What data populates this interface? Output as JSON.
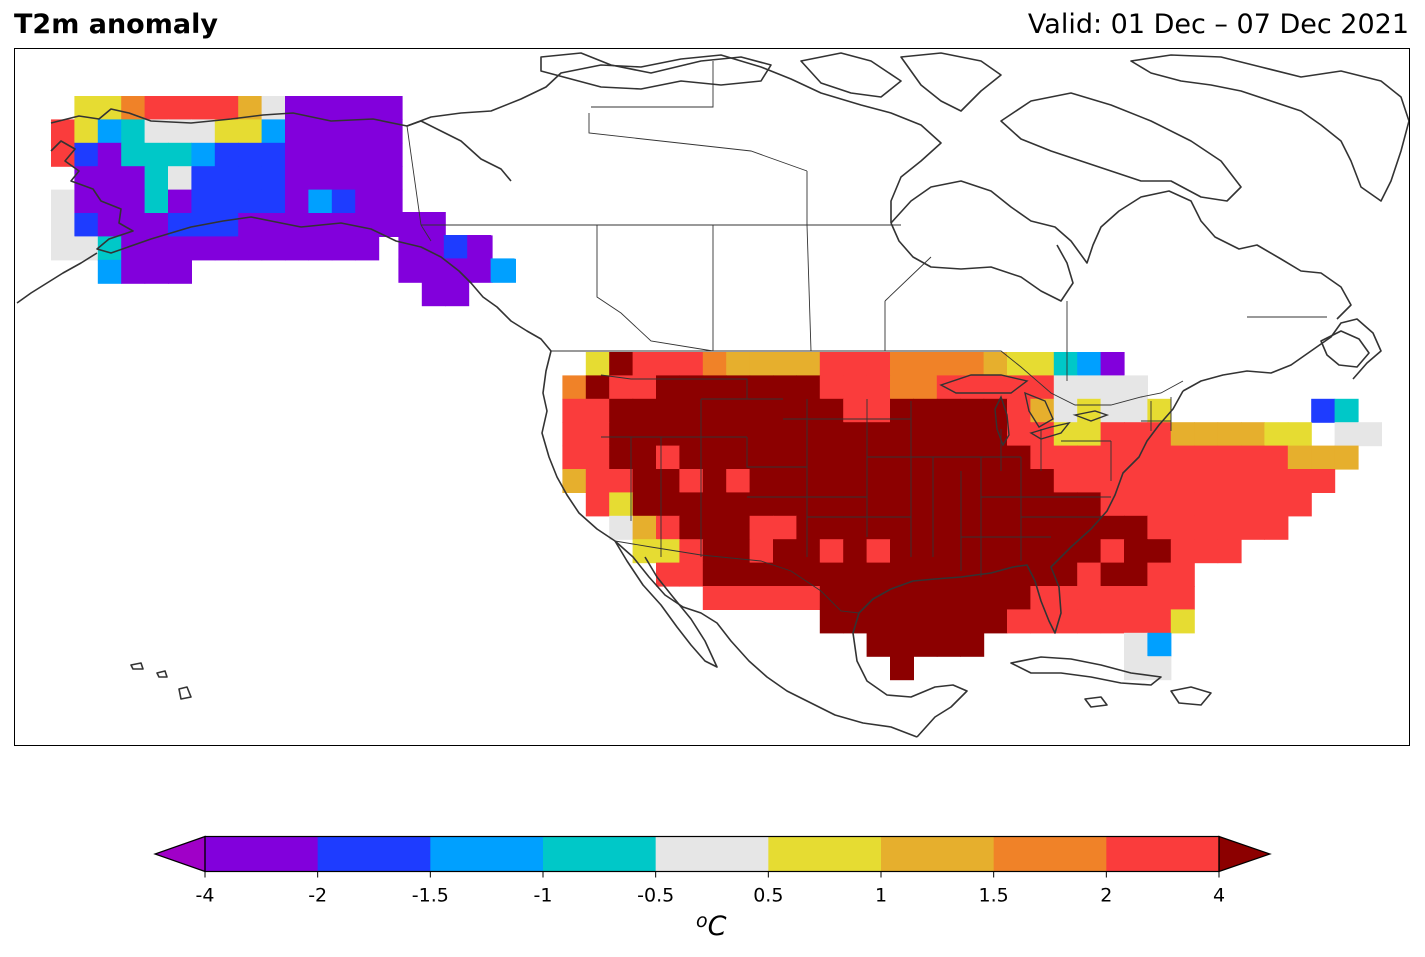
{
  "title": "T2m anomaly",
  "valid_label": "Valid: 01 Dec – 07 Dec 2021",
  "colorbar": {
    "unit_superscript": "o",
    "unit_main": "C",
    "ticks": [
      "-4",
      "-2",
      "-1.5",
      "-1",
      "-0.5",
      "0.5",
      "1",
      "1.5",
      "2",
      "4"
    ],
    "tick_values": [
      -4,
      -2,
      -1.5,
      -1,
      -0.5,
      0.5,
      1,
      1.5,
      2,
      4
    ],
    "bins": [
      {
        "from": -4,
        "to": -2,
        "color": "#8200dc"
      },
      {
        "from": -2,
        "to": -1.5,
        "color": "#1e3cff"
      },
      {
        "from": -1.5,
        "to": -1,
        "color": "#00a0ff"
      },
      {
        "from": -1,
        "to": -0.5,
        "color": "#00c8c8"
      },
      {
        "from": -0.5,
        "to": 0.5,
        "color": "#e6e6e6"
      },
      {
        "from": 0.5,
        "to": 1,
        "color": "#e6dc32"
      },
      {
        "from": 1,
        "to": 1.5,
        "color": "#e6af2d"
      },
      {
        "from": 1.5,
        "to": 2,
        "color": "#f08228"
      },
      {
        "from": 2,
        "to": 4,
        "color": "#fa3c3c"
      }
    ],
    "under_color": "#a000c8",
    "over_color": "#8c0000"
  },
  "chart_data": {
    "type": "heatmap",
    "title": "T2m anomaly",
    "subtitle": "Valid: 01 Dec – 07 Dec 2021",
    "units": "oC",
    "legend": "bottom colorbar",
    "regions": [
      {
        "region": "Alaska",
        "dominant_anomaly_class": "< -4 to -2"
      },
      {
        "region": "Alaska southeast panhandle",
        "dominant_anomaly_class": "-4 to -2"
      },
      {
        "region": "Central and southern United States",
        "dominant_anomaly_class": "> 4"
      },
      {
        "region": "West coast and northeast United States",
        "dominant_anomaly_class": "0.5 to 4"
      },
      {
        "region": "Upper Great Lakes",
        "dominant_anomaly_class": "-0.5 to 0.5"
      },
      {
        "region": "Southern Florida",
        "dominant_anomaly_class": "-0.5 to 0.5"
      }
    ]
  }
}
